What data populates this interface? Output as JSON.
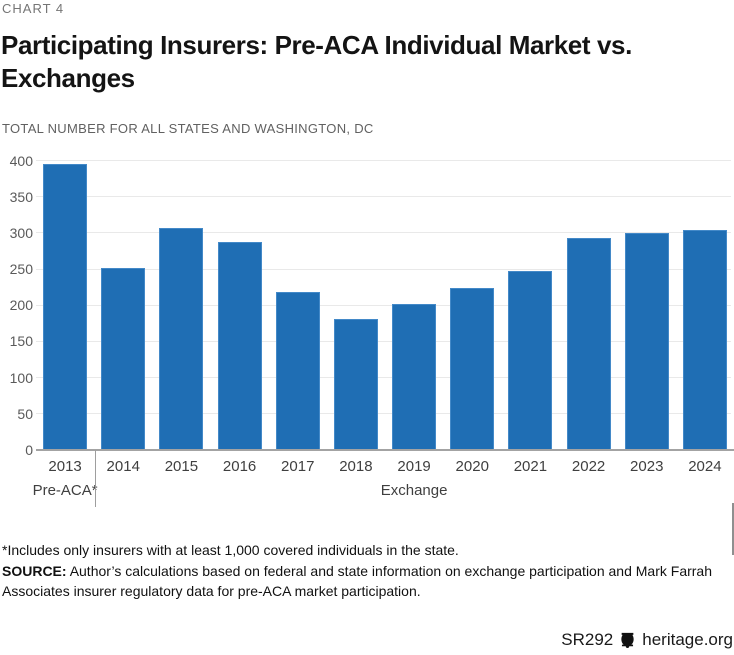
{
  "kicker": "CHART 4",
  "title_lines": [
    "Participating Insurers: Pre-ACA Individual Market vs.",
    "Exchanges"
  ],
  "subtitle": "TOTAL NUMBER FOR ALL STATES AND WASHINGTON, DC",
  "chart_data": {
    "type": "bar",
    "categories": [
      "2013",
      "2014",
      "2015",
      "2016",
      "2017",
      "2018",
      "2019",
      "2020",
      "2021",
      "2022",
      "2023",
      "2024"
    ],
    "values": [
      395,
      252,
      307,
      288,
      218,
      181,
      202,
      224,
      247,
      293,
      300,
      304
    ],
    "group_labels": [
      {
        "label": "Pre-ACA*",
        "span": [
          0,
          0
        ]
      },
      {
        "label": "Exchange",
        "span": [
          1,
          11
        ]
      }
    ],
    "title": "Participating Insurers: Pre-ACA Individual Market vs. Exchanges",
    "subtitle": "TOTAL NUMBER FOR ALL STATES AND WASHINGTON, DC",
    "xlabel": "",
    "ylabel": "",
    "ylim": [
      0,
      400
    ],
    "ytick_step": 50,
    "grid": true,
    "legend": "none",
    "bar_color": "#1f6eb4"
  },
  "footnote": "*Includes only insurers with at least 1,000 covered individuals in the state.",
  "source": {
    "label": "SOURCE:",
    "text": "Author’s calculations based on federal and state information on exchange participation and Mark Farrah Associates insurer regulatory data for pre-ACA market participation."
  },
  "footer": {
    "report_id": "SR292",
    "site": "heritage.org",
    "logo_icon": "liberty-bell-icon"
  },
  "colors": {
    "bar": "#1f6eb4",
    "bar_edge": "#4389c8",
    "gridline": "#e9e9e9",
    "axis": "#a3a3a3",
    "title_text": "#141414",
    "muted_text": "#616161"
  }
}
